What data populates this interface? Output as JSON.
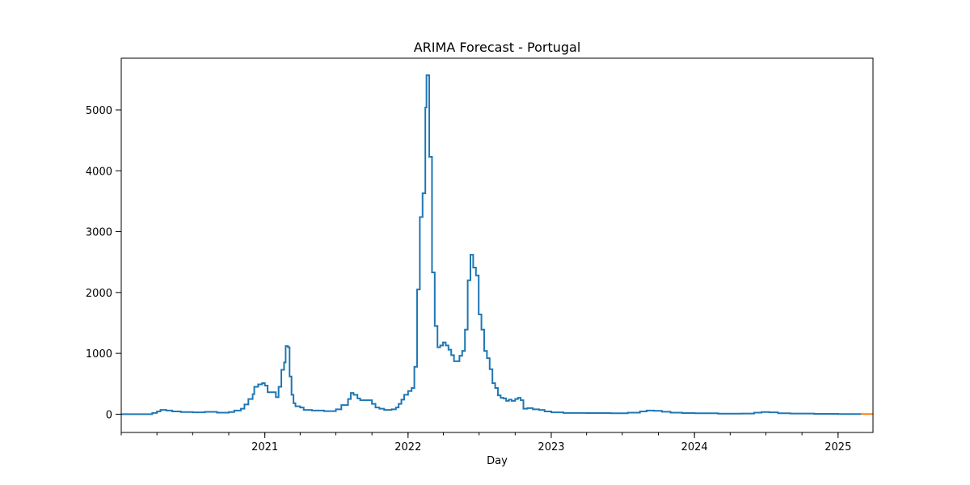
{
  "chart_data": {
    "type": "line",
    "title": "ARIMA Forecast - Portugal",
    "xlabel": "Day",
    "ylabel": "",
    "x_range": [
      "2020-01-01",
      "2025-03-31"
    ],
    "ylim": [
      -300,
      5850
    ],
    "x_ticks": [
      {
        "date": "2021-01-01",
        "label": "2021"
      },
      {
        "date": "2022-01-01",
        "label": "2022"
      },
      {
        "date": "2023-01-01",
        "label": "2023"
      },
      {
        "date": "2024-01-01",
        "label": "2024"
      },
      {
        "date": "2025-01-01",
        "label": "2025"
      }
    ],
    "y_ticks": [
      0,
      1000,
      2000,
      3000,
      4000,
      5000
    ],
    "grid": false,
    "series": [
      {
        "name": "",
        "color": "#1f77b4",
        "points": [
          [
            "2020-01-01",
            0
          ],
          [
            "2020-02-01",
            0
          ],
          [
            "2020-03-01",
            0
          ],
          [
            "2020-03-20",
            20
          ],
          [
            "2020-04-01",
            45
          ],
          [
            "2020-04-10",
            70
          ],
          [
            "2020-04-25",
            60
          ],
          [
            "2020-05-10",
            45
          ],
          [
            "2020-06-01",
            35
          ],
          [
            "2020-07-01",
            30
          ],
          [
            "2020-08-01",
            38
          ],
          [
            "2020-09-01",
            25
          ],
          [
            "2020-10-01",
            35
          ],
          [
            "2020-10-15",
            60
          ],
          [
            "2020-11-01",
            90
          ],
          [
            "2020-11-10",
            160
          ],
          [
            "2020-11-20",
            250
          ],
          [
            "2020-12-01",
            330
          ],
          [
            "2020-12-05",
            450
          ],
          [
            "2020-12-15",
            490
          ],
          [
            "2020-12-25",
            510
          ],
          [
            "2021-01-01",
            470
          ],
          [
            "2021-01-08",
            360
          ],
          [
            "2021-01-15",
            360
          ],
          [
            "2021-01-22",
            360
          ],
          [
            "2021-01-29",
            280
          ],
          [
            "2021-02-05",
            450
          ],
          [
            "2021-02-12",
            730
          ],
          [
            "2021-02-19",
            850
          ],
          [
            "2021-02-23",
            1120
          ],
          [
            "2021-03-01",
            1100
          ],
          [
            "2021-03-05",
            620
          ],
          [
            "2021-03-10",
            320
          ],
          [
            "2021-03-15",
            180
          ],
          [
            "2021-03-20",
            130
          ],
          [
            "2021-04-01",
            110
          ],
          [
            "2021-04-10",
            70
          ],
          [
            "2021-05-01",
            60
          ],
          [
            "2021-06-01",
            50
          ],
          [
            "2021-07-01",
            80
          ],
          [
            "2021-07-15",
            150
          ],
          [
            "2021-08-01",
            250
          ],
          [
            "2021-08-08",
            350
          ],
          [
            "2021-08-15",
            320
          ],
          [
            "2021-08-25",
            260
          ],
          [
            "2021-09-01",
            230
          ],
          [
            "2021-09-20",
            230
          ],
          [
            "2021-10-01",
            170
          ],
          [
            "2021-10-10",
            110
          ],
          [
            "2021-10-20",
            90
          ],
          [
            "2021-11-01",
            70
          ],
          [
            "2021-11-20",
            80
          ],
          [
            "2021-12-01",
            110
          ],
          [
            "2021-12-08",
            170
          ],
          [
            "2021-12-15",
            240
          ],
          [
            "2021-12-22",
            320
          ],
          [
            "2022-01-01",
            380
          ],
          [
            "2022-01-10",
            430
          ],
          [
            "2022-01-17",
            780
          ],
          [
            "2022-01-24",
            2050
          ],
          [
            "2022-01-31",
            3240
          ],
          [
            "2022-02-07",
            3630
          ],
          [
            "2022-02-14",
            5040
          ],
          [
            "2022-02-17",
            5570
          ],
          [
            "2022-02-24",
            4230
          ],
          [
            "2022-03-03",
            2330
          ],
          [
            "2022-03-10",
            1450
          ],
          [
            "2022-03-17",
            1100
          ],
          [
            "2022-03-24",
            1130
          ],
          [
            "2022-03-31",
            1180
          ],
          [
            "2022-04-07",
            1130
          ],
          [
            "2022-04-14",
            1060
          ],
          [
            "2022-04-21",
            970
          ],
          [
            "2022-04-28",
            870
          ],
          [
            "2022-05-05",
            870
          ],
          [
            "2022-05-12",
            960
          ],
          [
            "2022-05-19",
            1040
          ],
          [
            "2022-05-26",
            1390
          ],
          [
            "2022-06-02",
            2200
          ],
          [
            "2022-06-09",
            2620
          ],
          [
            "2022-06-16",
            2410
          ],
          [
            "2022-06-23",
            2280
          ],
          [
            "2022-06-30",
            1640
          ],
          [
            "2022-07-07",
            1390
          ],
          [
            "2022-07-14",
            1040
          ],
          [
            "2022-07-21",
            920
          ],
          [
            "2022-07-28",
            740
          ],
          [
            "2022-08-04",
            510
          ],
          [
            "2022-08-11",
            430
          ],
          [
            "2022-08-18",
            310
          ],
          [
            "2022-08-25",
            270
          ],
          [
            "2022-09-01",
            260
          ],
          [
            "2022-09-08",
            220
          ],
          [
            "2022-09-15",
            240
          ],
          [
            "2022-09-22",
            220
          ],
          [
            "2022-10-01",
            250
          ],
          [
            "2022-10-08",
            270
          ],
          [
            "2022-10-15",
            230
          ],
          [
            "2022-10-22",
            90
          ],
          [
            "2022-11-01",
            100
          ],
          [
            "2022-11-15",
            80
          ],
          [
            "2022-12-01",
            70
          ],
          [
            "2022-12-15",
            45
          ],
          [
            "2023-01-01",
            30
          ],
          [
            "2023-02-01",
            20
          ],
          [
            "2023-04-01",
            18
          ],
          [
            "2023-06-01",
            15
          ],
          [
            "2023-07-15",
            25
          ],
          [
            "2023-08-15",
            45
          ],
          [
            "2023-09-01",
            60
          ],
          [
            "2023-09-20",
            55
          ],
          [
            "2023-10-10",
            40
          ],
          [
            "2023-11-01",
            25
          ],
          [
            "2023-12-01",
            18
          ],
          [
            "2024-01-01",
            15
          ],
          [
            "2024-03-01",
            8
          ],
          [
            "2024-05-01",
            10
          ],
          [
            "2024-06-01",
            25
          ],
          [
            "2024-06-20",
            35
          ],
          [
            "2024-07-10",
            30
          ],
          [
            "2024-08-01",
            15
          ],
          [
            "2024-09-01",
            10
          ],
          [
            "2024-11-01",
            5
          ],
          [
            "2025-01-01",
            3
          ],
          [
            "2025-02-28",
            2
          ]
        ]
      },
      {
        "name": "",
        "color": "#ff7f0e",
        "points": [
          [
            "2025-02-28",
            2
          ],
          [
            "2025-03-31",
            2
          ]
        ]
      }
    ]
  }
}
